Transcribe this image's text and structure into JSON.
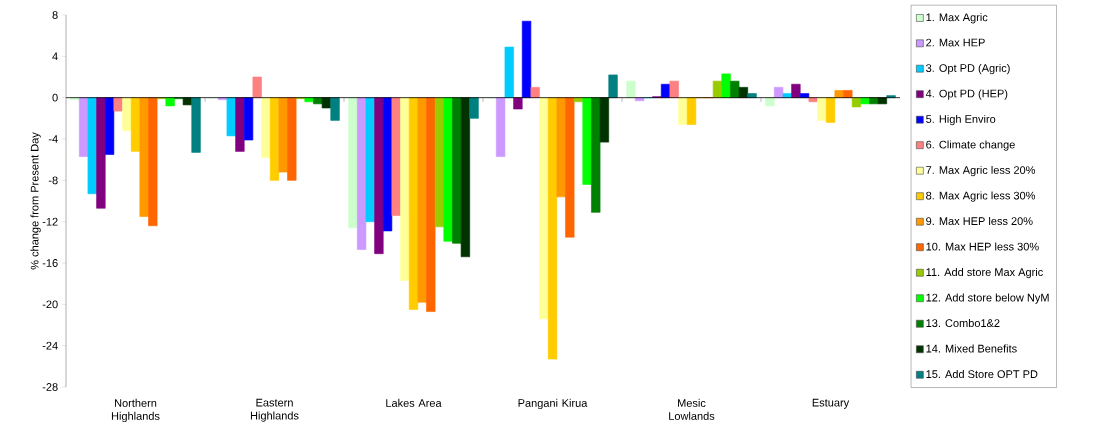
{
  "chart_data": {
    "type": "bar",
    "ylabel": "% change from Present Day",
    "categories": [
      "Northern Highlands",
      "Eastern Highlands",
      "Lakes Area",
      "Pangani Kirua",
      "Mesic Lowlands",
      "Estuary"
    ],
    "ylim": [
      -28,
      8
    ],
    "yticks": [
      -28,
      -24,
      -20,
      -16,
      -12,
      -8,
      -4,
      0,
      4,
      8
    ],
    "legend": "right",
    "series": [
      {
        "name": "1. Max Agric",
        "color": "#ccffcc",
        "values": [
          -0.2,
          0,
          -12.6,
          0,
          1.6,
          -0.8
        ]
      },
      {
        "name": "2. Max HEP",
        "color": "#cc99ff",
        "values": [
          -5.7,
          -0.2,
          -14.7,
          -5.7,
          -0.3,
          1.0
        ]
      },
      {
        "name": "3. Opt PD (Agric)",
        "color": "#00ccff",
        "values": [
          -9.3,
          -3.7,
          -12.0,
          4.9,
          0,
          0.4
        ]
      },
      {
        "name": "4. Opt PD (HEP)",
        "color": "#800080",
        "values": [
          -10.7,
          -5.2,
          -15.1,
          -1.1,
          0.1,
          1.3
        ]
      },
      {
        "name": "5. High Enviro",
        "color": "#0000ff",
        "values": [
          -5.5,
          -4.1,
          -12.9,
          7.4,
          1.3,
          0.4
        ]
      },
      {
        "name": "6. Climate change",
        "color": "#ff8080",
        "values": [
          -1.3,
          2.0,
          -11.4,
          1.0,
          1.6,
          -0.4
        ]
      },
      {
        "name": "7. Max Agric less 20%",
        "color": "#ffff99",
        "values": [
          -3.2,
          -5.8,
          -17.7,
          -21.4,
          -2.6,
          -2.2
        ]
      },
      {
        "name": "8. Max Agric less 30%",
        "color": "#ffcc00",
        "values": [
          -5.2,
          -8.0,
          -20.5,
          -25.3,
          -2.6,
          -2.4
        ]
      },
      {
        "name": "9. Max HEP less 20%",
        "color": "#ff9900",
        "values": [
          -11.5,
          -7.2,
          -19.8,
          -9.6,
          0,
          0.7
        ]
      },
      {
        "name": "10. Max HEP less 30%",
        "color": "#ff6600",
        "values": [
          -12.4,
          -8.0,
          -20.7,
          -13.5,
          0,
          0.7
        ]
      },
      {
        "name": "11. Add store Max Agric",
        "color": "#99cc00",
        "values": [
          -0.1,
          -0.1,
          -12.5,
          -0.4,
          1.6,
          -0.9
        ]
      },
      {
        "name": "12. Add store below NyM",
        "color": "#00ff00",
        "values": [
          -0.8,
          -0.4,
          -13.9,
          -8.4,
          2.3,
          -0.6
        ]
      },
      {
        "name": "13. Combo1&2",
        "color": "#008000",
        "values": [
          -0.1,
          -0.6,
          -14.1,
          -11.1,
          1.6,
          -0.6
        ]
      },
      {
        "name": "14. Mixed Benefits",
        "color": "#003300",
        "values": [
          -0.7,
          -1.0,
          -15.4,
          -4.3,
          1.0,
          -0.6
        ]
      },
      {
        "name": "15. Add Store OPT PD",
        "color": "#008080",
        "values": [
          -5.3,
          -2.2,
          -2.0,
          2.2,
          0.4,
          0.2
        ]
      }
    ]
  }
}
